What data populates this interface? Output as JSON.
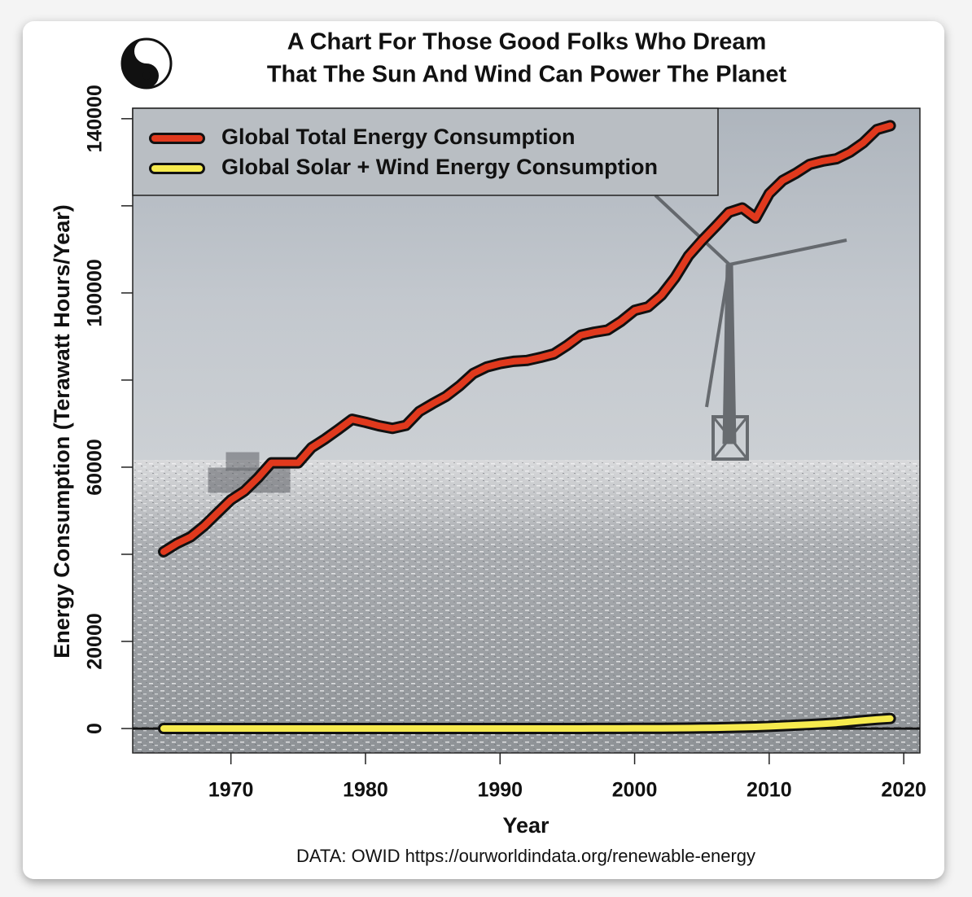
{
  "chart_data": {
    "type": "line",
    "title": [
      "A Chart For Those Good Folks Who Dream",
      "That The Sun And Wind Can Power The Planet"
    ],
    "x_label": "Year",
    "y_label": "Energy Consumption (Terawatt Hours/Year)",
    "caption": "DATA: OWID https://ourworldindata.org/renewable-energy",
    "x": [
      1965,
      1966,
      1967,
      1968,
      1969,
      1970,
      1971,
      1972,
      1973,
      1974,
      1975,
      1976,
      1977,
      1978,
      1979,
      1980,
      1981,
      1982,
      1983,
      1984,
      1985,
      1986,
      1987,
      1988,
      1989,
      1990,
      1991,
      1992,
      1993,
      1994,
      1995,
      1996,
      1997,
      1998,
      1999,
      2000,
      2001,
      2002,
      2003,
      2004,
      2005,
      2006,
      2007,
      2008,
      2009,
      2010,
      2011,
      2012,
      2013,
      2014,
      2015,
      2016,
      2017,
      2018,
      2019
    ],
    "series": [
      {
        "name": "Global Total Energy Consumption",
        "color": "#e0391d",
        "values": [
          40600,
          42500,
          44000,
          46500,
          49500,
          52500,
          54500,
          57500,
          61000,
          61000,
          61000,
          64500,
          66500,
          68700,
          71000,
          70300,
          69500,
          68900,
          69600,
          72800,
          74600,
          76300,
          78700,
          81500,
          83000,
          83800,
          84300,
          84500,
          85200,
          86000,
          88000,
          90300,
          91000,
          91500,
          93500,
          96000,
          96800,
          99500,
          103500,
          108500,
          112000,
          115200,
          118500,
          119500,
          117200,
          122800,
          125800,
          127500,
          129500,
          130300,
          130800,
          132300,
          134500,
          137500,
          138400
        ]
      },
      {
        "name": "Global Solar + Wind Energy Consumption",
        "color": "#f6ea4e",
        "values": [
          0,
          0,
          0,
          0,
          0,
          0,
          0,
          0,
          0,
          0,
          0,
          0,
          0,
          0,
          0,
          0,
          0,
          0,
          0,
          0,
          0,
          0,
          0,
          0,
          0,
          4,
          4,
          5,
          6,
          8,
          10,
          12,
          16,
          22,
          32,
          40,
          54,
          65,
          87,
          107,
          137,
          177,
          240,
          298,
          378,
          497,
          640,
          776,
          914,
          1095,
          1286,
          1555,
          1835,
          2100,
          2300
        ]
      }
    ],
    "xlim": [
      1962.7,
      2021.2
    ],
    "xticks": [
      1970,
      1980,
      1990,
      2000,
      2010,
      2020
    ],
    "ylim": [
      -5600,
      142400
    ],
    "yticks": [
      0,
      20000,
      60000,
      100000,
      140000
    ],
    "yticks_unlabeled": [
      40000,
      80000,
      120000
    ],
    "zero_line": true,
    "legend": "top-left"
  }
}
